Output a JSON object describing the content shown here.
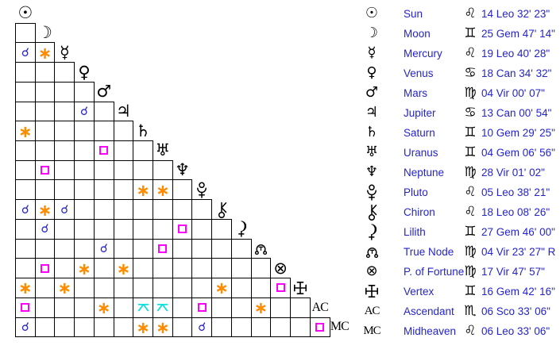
{
  "app": {
    "view_name": "aspect-grid-and-positions"
  },
  "colors": {
    "text_blue": "#2424cc",
    "conjunction": "#2424cc",
    "sextile": "#ff8c00",
    "square": "#ff00ff",
    "quincunx": "#00dfe0",
    "grid_lines": "#000000",
    "glyphs": "#000000",
    "background": "#ffffff"
  },
  "planets": [
    {
      "key": "sun",
      "name": "Sun",
      "glyph": {
        "type": "char",
        "value": "☉",
        "icon": "sun-icon"
      },
      "sign": "Leo",
      "sign_glyph": "♌",
      "position": "14 Leo 32' 23\""
    },
    {
      "key": "moon",
      "name": "Moon",
      "glyph": {
        "type": "char",
        "value": "☽",
        "icon": "moon-icon"
      },
      "sign": "Gem",
      "sign_glyph": "♊",
      "position": "25 Gem 47' 14\""
    },
    {
      "key": "mercury",
      "name": "Mercury",
      "glyph": {
        "type": "char",
        "value": "☿",
        "icon": "mercury-icon"
      },
      "sign": "Leo",
      "sign_glyph": "♌",
      "position": "19 Leo 40' 28\""
    },
    {
      "key": "venus",
      "name": "Venus",
      "glyph": {
        "type": "char",
        "value": "♀",
        "icon": "venus-icon"
      },
      "sign": "Can",
      "sign_glyph": "♋",
      "position": "18 Can 34' 32\""
    },
    {
      "key": "mars",
      "name": "Mars",
      "glyph": {
        "type": "char",
        "value": "♂",
        "icon": "mars-icon"
      },
      "sign": "Vir",
      "sign_glyph": "♍",
      "position": "04 Vir 00' 07\""
    },
    {
      "key": "jupiter",
      "name": "Jupiter",
      "glyph": {
        "type": "char",
        "value": "♃",
        "icon": "jupiter-icon"
      },
      "sign": "Can",
      "sign_glyph": "♋",
      "position": "13 Can 00' 54\""
    },
    {
      "key": "saturn",
      "name": "Saturn",
      "glyph": {
        "type": "char",
        "value": "♄",
        "icon": "saturn-icon"
      },
      "sign": "Gem",
      "sign_glyph": "♊",
      "position": "10 Gem 29' 25\""
    },
    {
      "key": "uranus",
      "name": "Uranus",
      "glyph": {
        "type": "char",
        "value": "♅",
        "icon": "uranus-icon"
      },
      "sign": "Gem",
      "sign_glyph": "♊",
      "position": "04 Gem 06' 56\""
    },
    {
      "key": "neptune",
      "name": "Neptune",
      "glyph": {
        "type": "char",
        "value": "♆",
        "icon": "neptune-icon"
      },
      "sign": "Vir",
      "sign_glyph": "♍",
      "position": "28 Vir 01' 02\""
    },
    {
      "key": "pluto",
      "name": "Pluto",
      "glyph": {
        "type": "svg",
        "value": "pluto",
        "icon": "pluto-icon"
      },
      "sign": "Leo",
      "sign_glyph": "♌",
      "position": "05 Leo 38' 21\""
    },
    {
      "key": "chiron",
      "name": "Chiron",
      "glyph": {
        "type": "svg",
        "value": "chiron",
        "icon": "chiron-icon"
      },
      "sign": "Leo",
      "sign_glyph": "♌",
      "position": "18 Leo 08' 26\""
    },
    {
      "key": "lilith",
      "name": "Lilith",
      "glyph": {
        "type": "svg",
        "value": "lilith",
        "icon": "lilith-icon"
      },
      "sign": "Gem",
      "sign_glyph": "♊",
      "position": "27 Gem 46' 00\""
    },
    {
      "key": "true_node",
      "name": "True Node",
      "glyph": {
        "type": "svg",
        "value": "node",
        "icon": "true-node-icon"
      },
      "sign": "Vir",
      "sign_glyph": "♍",
      "position": "04 Vir 23' 27\" R"
    },
    {
      "key": "pof",
      "name": "P. of Fortune",
      "glyph": {
        "type": "char",
        "value": "⊗",
        "icon": "part-of-fortune-icon"
      },
      "sign": "Vir",
      "sign_glyph": "♍",
      "position": "17 Vir 47' 57\""
    },
    {
      "key": "vertex",
      "name": "Vertex",
      "glyph": {
        "type": "svg",
        "value": "vertex",
        "icon": "vertex-icon"
      },
      "sign": "Gem",
      "sign_glyph": "♊",
      "position": "16 Gem 42' 16\""
    },
    {
      "key": "asc",
      "name": "Ascendant",
      "glyph": {
        "type": "text",
        "value": "AC",
        "icon": "ascendant-label"
      },
      "sign": "Sco",
      "sign_glyph": "♏",
      "position": "06 Sco 33' 06\""
    },
    {
      "key": "mc",
      "name": "Midheaven",
      "glyph": {
        "type": "text",
        "value": "MC",
        "icon": "midheaven-label"
      },
      "sign": "Leo",
      "sign_glyph": "♌",
      "position": "06 Leo 33' 06\""
    }
  ],
  "aspect_types": {
    "conjunction": {
      "style": "char",
      "glyph": "☌",
      "color": "#2424cc"
    },
    "sextile": {
      "style": "char",
      "glyph": "∗",
      "color": "#ff8c00"
    },
    "square": {
      "style": "box",
      "glyph": "square-outline",
      "color": "#ff00ff"
    },
    "quincunx": {
      "style": "svg",
      "glyph": "quincunx",
      "color": "#00dfe0"
    }
  },
  "aspects": [
    {
      "row": "mercury",
      "col": "sun",
      "type": "conjunction"
    },
    {
      "row": "mercury",
      "col": "moon",
      "type": "sextile"
    },
    {
      "row": "jupiter",
      "col": "venus",
      "type": "conjunction"
    },
    {
      "row": "saturn",
      "col": "sun",
      "type": "sextile"
    },
    {
      "row": "uranus",
      "col": "mars",
      "type": "square"
    },
    {
      "row": "neptune",
      "col": "moon",
      "type": "square"
    },
    {
      "row": "pluto",
      "col": "saturn",
      "type": "sextile"
    },
    {
      "row": "pluto",
      "col": "uranus",
      "type": "sextile"
    },
    {
      "row": "chiron",
      "col": "sun",
      "type": "conjunction"
    },
    {
      "row": "chiron",
      "col": "moon",
      "type": "sextile"
    },
    {
      "row": "chiron",
      "col": "mercury",
      "type": "conjunction"
    },
    {
      "row": "lilith",
      "col": "moon",
      "type": "conjunction"
    },
    {
      "row": "lilith",
      "col": "neptune",
      "type": "square"
    },
    {
      "row": "true_node",
      "col": "mars",
      "type": "conjunction"
    },
    {
      "row": "true_node",
      "col": "uranus",
      "type": "square"
    },
    {
      "row": "pof",
      "col": "moon",
      "type": "square"
    },
    {
      "row": "pof",
      "col": "venus",
      "type": "sextile"
    },
    {
      "row": "pof",
      "col": "jupiter",
      "type": "sextile"
    },
    {
      "row": "vertex",
      "col": "sun",
      "type": "sextile"
    },
    {
      "row": "vertex",
      "col": "mercury",
      "type": "sextile"
    },
    {
      "row": "vertex",
      "col": "chiron",
      "type": "sextile"
    },
    {
      "row": "vertex",
      "col": "pof",
      "type": "square"
    },
    {
      "row": "asc",
      "col": "sun",
      "type": "square"
    },
    {
      "row": "asc",
      "col": "mars",
      "type": "sextile"
    },
    {
      "row": "asc",
      "col": "saturn",
      "type": "quincunx"
    },
    {
      "row": "asc",
      "col": "uranus",
      "type": "quincunx"
    },
    {
      "row": "asc",
      "col": "pluto",
      "type": "square"
    },
    {
      "row": "asc",
      "col": "true_node",
      "type": "sextile"
    },
    {
      "row": "mc",
      "col": "sun",
      "type": "conjunction"
    },
    {
      "row": "mc",
      "col": "saturn",
      "type": "sextile"
    },
    {
      "row": "mc",
      "col": "uranus",
      "type": "sextile"
    },
    {
      "row": "mc",
      "col": "pluto",
      "type": "conjunction"
    },
    {
      "row": "mc",
      "col": "asc",
      "type": "square"
    }
  ]
}
